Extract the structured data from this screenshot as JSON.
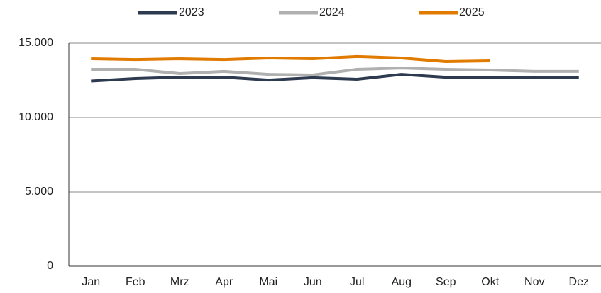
{
  "chart_data": {
    "type": "line",
    "categories": [
      "Jan",
      "Feb",
      "Mrz",
      "Apr",
      "Mai",
      "Jun",
      "Jul",
      "Aug",
      "Sep",
      "Okt",
      "Nov",
      "Dez"
    ],
    "series": [
      {
        "name": "2023",
        "color": "#2e3a4f",
        "values": [
          12450,
          12620,
          12710,
          12710,
          12520,
          12670,
          12570,
          12900,
          12710,
          12710,
          12710,
          12710
        ]
      },
      {
        "name": "2024",
        "color": "#b0b0b0",
        "values": [
          13240,
          13240,
          12950,
          13100,
          12900,
          12860,
          13240,
          13330,
          13240,
          13190,
          13100,
          13100
        ]
      },
      {
        "name": "2025",
        "color": "#e07b00",
        "values": [
          13950,
          13900,
          13950,
          13900,
          14000,
          13950,
          14100,
          14000,
          13760,
          13810,
          null,
          null
        ]
      }
    ],
    "ylim": [
      0,
      15000
    ],
    "yticks": [
      0,
      {
        "value": 5000,
        "label": "5.000"
      },
      {
        "value": 10000,
        "label": "10.000"
      },
      {
        "value": 15000,
        "label": "15.000"
      }
    ],
    "grid": true,
    "legend": "top"
  }
}
